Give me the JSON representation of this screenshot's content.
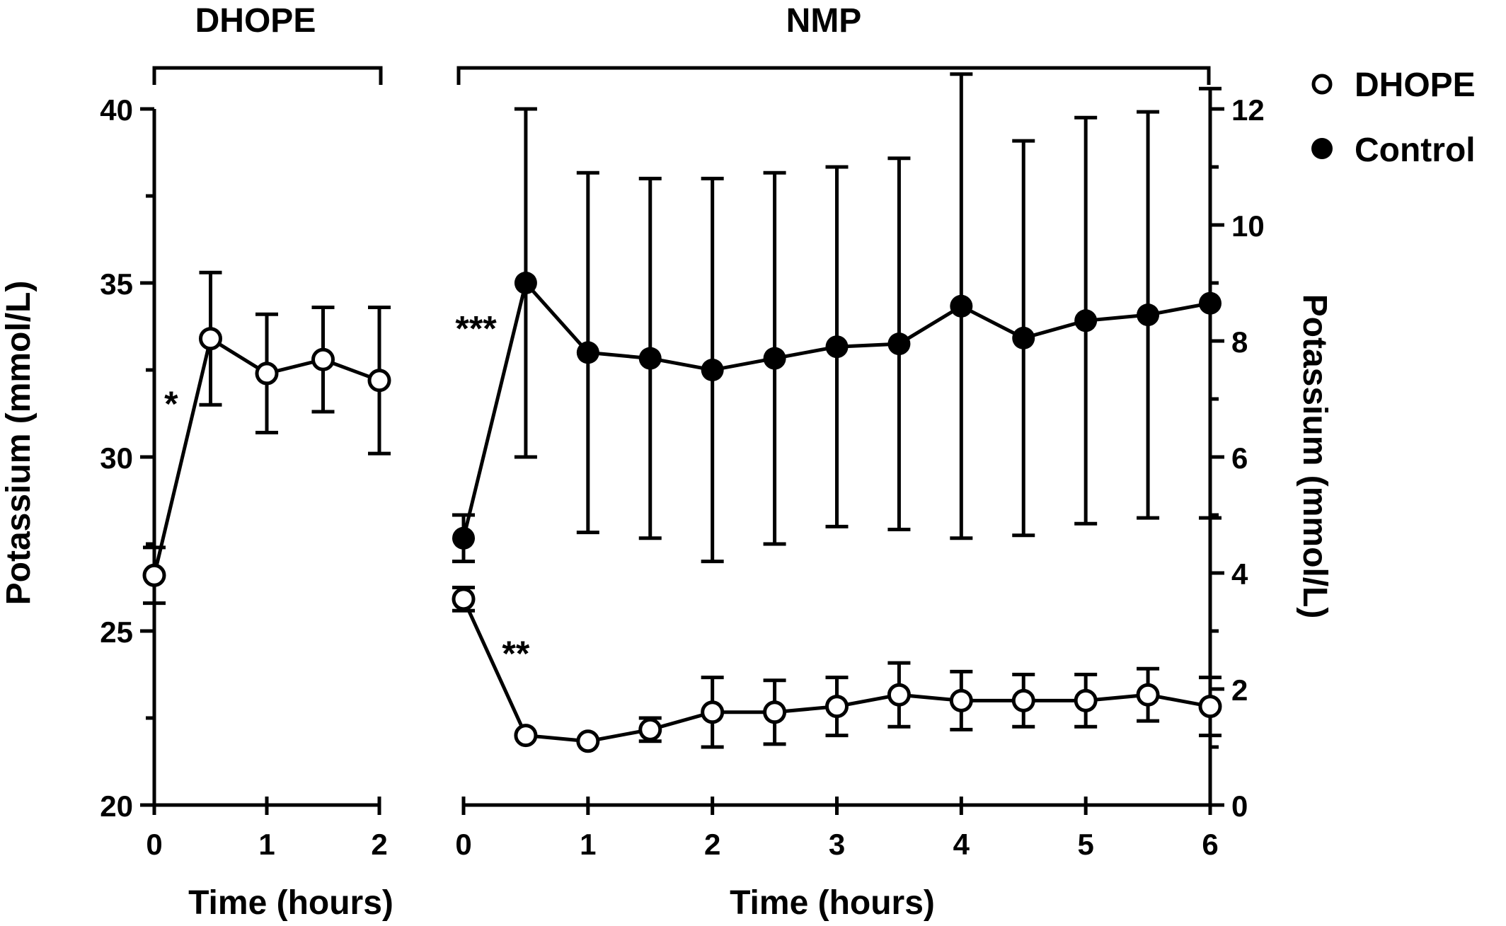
{
  "chart_data": [
    {
      "type": "line",
      "panel": "DHOPE",
      "header": "DHOPE",
      "xlabel": "Time (hours)",
      "ylabel": "Potassium (mmol/L)",
      "xlim": [
        0,
        2
      ],
      "ylim": [
        20,
        40
      ],
      "xticks": [
        "0",
        "1",
        "2"
      ],
      "yticks": [
        "20",
        "25",
        "30",
        "35",
        "40"
      ],
      "series": [
        {
          "name": "DHOPE",
          "marker": "open-circle",
          "x": [
            0,
            0.5,
            1,
            1.5,
            2
          ],
          "y": [
            26.6,
            33.4,
            32.4,
            32.8,
            32.2
          ],
          "err": [
            0.8,
            1.9,
            1.7,
            1.5,
            2.1
          ]
        }
      ],
      "annotations": [
        {
          "text": "*",
          "x": 0.15,
          "y": 31.5
        }
      ]
    },
    {
      "type": "line",
      "panel": "NMP",
      "header": "NMP",
      "xlabel": "Time (hours)",
      "ylabel": "Potassium (mmol/L)",
      "xlim": [
        0,
        6
      ],
      "ylim": [
        0,
        12
      ],
      "xticks": [
        "0",
        "1",
        "2",
        "3",
        "4",
        "5",
        "6"
      ],
      "yticks": [
        "0",
        "2",
        "4",
        "6",
        "8",
        "10",
        "12"
      ],
      "series": [
        {
          "name": "DHOPE",
          "marker": "open-circle",
          "x": [
            0,
            0.5,
            1,
            1.5,
            2,
            2.5,
            3,
            3.5,
            4,
            4.5,
            5,
            5.5,
            6
          ],
          "y": [
            3.55,
            1.2,
            1.1,
            1.3,
            1.6,
            1.6,
            1.7,
            1.9,
            1.8,
            1.8,
            1.8,
            1.9,
            1.7
          ],
          "err": [
            0.2,
            0.0,
            0.0,
            0.2,
            0.6,
            0.55,
            0.5,
            0.55,
            0.5,
            0.45,
            0.45,
            0.45,
            0.5
          ]
        },
        {
          "name": "Control",
          "marker": "filled-circle",
          "x": [
            0,
            0.5,
            1,
            1.5,
            2,
            2.5,
            3,
            3.5,
            4,
            4.5,
            5,
            5.5,
            6
          ],
          "y": [
            4.6,
            9.0,
            7.8,
            7.7,
            7.5,
            7.7,
            7.9,
            7.95,
            8.6,
            8.05,
            8.35,
            8.45,
            8.65
          ],
          "err": [
            0.4,
            3.0,
            3.1,
            3.1,
            3.3,
            3.2,
            3.1,
            3.2,
            4.0,
            3.4,
            3.5,
            3.5,
            3.7
          ]
        }
      ],
      "annotations": [
        {
          "text": "***",
          "x": 0.1,
          "y": 8.2
        },
        {
          "text": "**",
          "x": 0.42,
          "y": 2.6
        }
      ]
    }
  ],
  "legend": {
    "placement": "top-right",
    "items": [
      {
        "label": "DHOPE",
        "marker": "open-circle"
      },
      {
        "label": "Control",
        "marker": "filled-circle"
      }
    ]
  }
}
